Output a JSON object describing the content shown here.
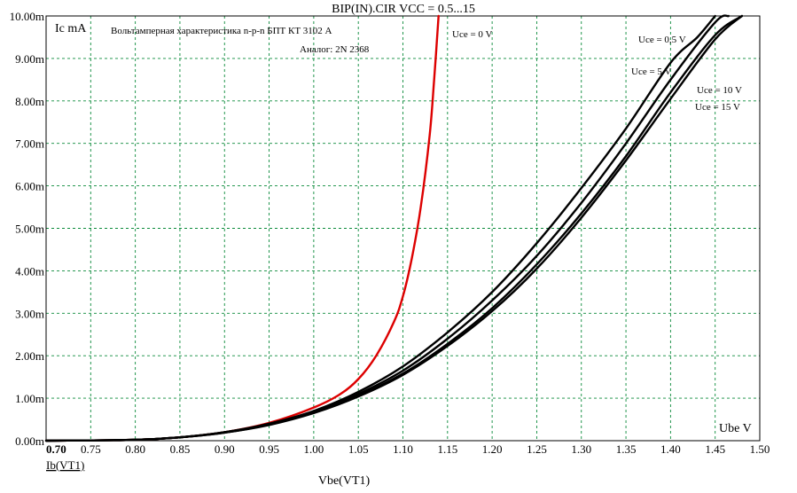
{
  "chart_data": {
    "type": "line",
    "title": "BIP(IN).CIR VCC = 0.5...15",
    "xlabel": "Vbe(VT1)",
    "ylabel": "Ic mA",
    "x_unit_label": "Ube V",
    "x_probe_label": "Ib(VT1)",
    "xlim": [
      0.7,
      1.5
    ],
    "ylim": [
      0,
      10
    ],
    "x_ticks": [
      "0.70",
      "0.75",
      "0.80",
      "0.85",
      "0.90",
      "0.95",
      "1.00",
      "1.05",
      "1.10",
      "1.15",
      "1.20",
      "1.25",
      "1.30",
      "1.35",
      "1.40",
      "1.45",
      "1.50"
    ],
    "y_ticks": [
      "0.00m",
      "1.00m",
      "2.00m",
      "3.00m",
      "4.00m",
      "5.00m",
      "6.00m",
      "7.00m",
      "8.00m",
      "9.00m",
      "10.00m"
    ],
    "grid": true,
    "annotations": {
      "description": "Вольтамперная характеристика n-p-n БПТ КТ 3102 А",
      "analog": "Аналог: 2N 2368"
    },
    "series": [
      {
        "name": "Uce = 0 V",
        "color": "#dd0000",
        "x": [
          0.7,
          0.8,
          0.85,
          0.9,
          0.95,
          1.0,
          1.03,
          1.05,
          1.07,
          1.09,
          1.1,
          1.11,
          1.12,
          1.13,
          1.135,
          1.14
        ],
        "y": [
          0.0,
          0.02,
          0.08,
          0.2,
          0.42,
          0.78,
          1.1,
          1.45,
          2.0,
          2.8,
          3.4,
          4.3,
          5.5,
          7.2,
          8.5,
          10.0
        ]
      },
      {
        "name": "Uce = 0,5 V",
        "color": "#000000",
        "x": [
          0.7,
          0.8,
          0.85,
          0.9,
          0.95,
          1.0,
          1.05,
          1.1,
          1.15,
          1.2,
          1.25,
          1.3,
          1.35,
          1.4,
          1.43,
          1.45
        ],
        "y": [
          0.0,
          0.02,
          0.08,
          0.2,
          0.4,
          0.7,
          1.15,
          1.75,
          2.55,
          3.5,
          4.65,
          5.95,
          7.35,
          8.9,
          9.5,
          10.0
        ]
      },
      {
        "name": "Uce = 5 V",
        "color": "#000000",
        "x": [
          0.7,
          0.8,
          0.85,
          0.9,
          0.95,
          1.0,
          1.05,
          1.1,
          1.15,
          1.2,
          1.25,
          1.3,
          1.35,
          1.4,
          1.45,
          1.465
        ],
        "y": [
          0.0,
          0.02,
          0.08,
          0.2,
          0.39,
          0.68,
          1.1,
          1.65,
          2.4,
          3.3,
          4.35,
          5.6,
          7.0,
          8.5,
          9.85,
          10.0
        ]
      },
      {
        "name": "Uce = 10 V",
        "color": "#000000",
        "x": [
          0.7,
          0.8,
          0.85,
          0.9,
          0.95,
          1.0,
          1.05,
          1.1,
          1.15,
          1.2,
          1.25,
          1.3,
          1.35,
          1.4,
          1.45,
          1.48
        ],
        "y": [
          0.0,
          0.02,
          0.08,
          0.19,
          0.38,
          0.66,
          1.06,
          1.58,
          2.28,
          3.12,
          4.15,
          5.35,
          6.7,
          8.2,
          9.55,
          10.0
        ]
      },
      {
        "name": "Uce = 15 V",
        "color": "#000000",
        "x": [
          0.7,
          0.8,
          0.85,
          0.9,
          0.95,
          1.0,
          1.05,
          1.1,
          1.15,
          1.2,
          1.25,
          1.3,
          1.35,
          1.4,
          1.45,
          1.48
        ],
        "y": [
          0.0,
          0.02,
          0.08,
          0.19,
          0.37,
          0.65,
          1.04,
          1.55,
          2.23,
          3.05,
          4.05,
          5.25,
          6.6,
          8.05,
          9.45,
          10.0
        ]
      }
    ]
  }
}
